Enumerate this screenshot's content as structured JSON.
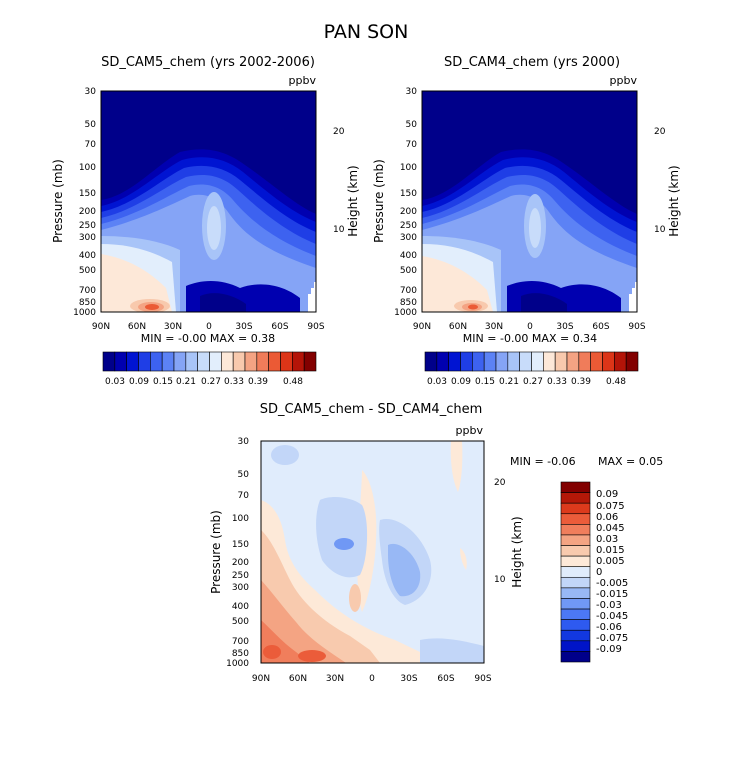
{
  "page_title": "PAN SON",
  "palettes": {
    "abs": [
      "#00008a",
      "#0000b0",
      "#0014d2",
      "#1f3ee6",
      "#3d62f0",
      "#5c82f5",
      "#85a4f6",
      "#a8c4f8",
      "#c8dcfa",
      "#e2eefc",
      "#fde8d8",
      "#f8c9ad",
      "#f4a383",
      "#f07c5a",
      "#eb5a35",
      "#dc3518",
      "#b41408",
      "#820000"
    ],
    "diff": [
      "#00008a",
      "#0014c8",
      "#1238e0",
      "#2e5af0",
      "#4c78f5",
      "#7098f5",
      "#98b8f5",
      "#c2d6f8",
      "#e0ecfc",
      "#fde9d8",
      "#f8caae",
      "#f4a483",
      "#f07e5c",
      "#eb5c3a",
      "#dc3a1c",
      "#b41808",
      "#820000"
    ]
  },
  "chart_data": [
    {
      "type": "heatmap",
      "title": "SD_CAM5_chem (yrs 2002-2006)",
      "units": "ppbv",
      "ylabel": "Pressure (mb)",
      "y2label": "Height (km)",
      "xticks": [
        "90N",
        "60N",
        "30N",
        "0",
        "30S",
        "60S",
        "90S"
      ],
      "yticks": [
        "30",
        "50",
        "70",
        "100",
        "150",
        "200",
        "250",
        "300",
        "400",
        "500",
        "700",
        "850",
        "1000"
      ],
      "y2ticks": [
        "20",
        "10"
      ],
      "stats": "MIN =   -0.00    MAX =   0.38",
      "colorbar_labels": [
        "0.03",
        "0.09",
        "0.15",
        "0.21",
        "0.27",
        "0.33",
        "0.39",
        "0.48"
      ]
    },
    {
      "type": "heatmap",
      "title": "SD_CAM4_chem (yrs 2000)",
      "units": "ppbv",
      "ylabel": "Pressure (mb)",
      "y2label": "Height (km)",
      "xticks": [
        "90N",
        "60N",
        "30N",
        "0",
        "30S",
        "60S",
        "90S"
      ],
      "yticks": [
        "30",
        "50",
        "70",
        "100",
        "150",
        "200",
        "250",
        "300",
        "400",
        "500",
        "700",
        "850",
        "1000"
      ],
      "y2ticks": [
        "20",
        "10"
      ],
      "stats": "MIN =   -0.00    MAX =   0.34",
      "colorbar_labels": [
        "0.03",
        "0.09",
        "0.15",
        "0.21",
        "0.27",
        "0.33",
        "0.39",
        "0.48"
      ]
    },
    {
      "type": "heatmap",
      "title": "SD_CAM5_chem - SD_CAM4_chem",
      "units": "ppbv",
      "ylabel": "Pressure (mb)",
      "y2label": "Height (km)",
      "xticks": [
        "90N",
        "60N",
        "30N",
        "0",
        "30S",
        "60S",
        "90S"
      ],
      "yticks": [
        "30",
        "50",
        "70",
        "100",
        "150",
        "200",
        "250",
        "300",
        "400",
        "500",
        "700",
        "850",
        "1000"
      ],
      "y2ticks": [
        "20",
        "10"
      ],
      "stats_min": "MIN =   -0.06",
      "stats_max": "MAX =    0.05",
      "colorbar_labels": [
        "0.09",
        "0.075",
        "0.06",
        "0.045",
        "0.03",
        "0.015",
        "0.005",
        "0",
        "-0.005",
        "-0.015",
        "-0.03",
        "-0.045",
        "-0.06",
        "-0.075",
        "-0.09"
      ]
    }
  ]
}
